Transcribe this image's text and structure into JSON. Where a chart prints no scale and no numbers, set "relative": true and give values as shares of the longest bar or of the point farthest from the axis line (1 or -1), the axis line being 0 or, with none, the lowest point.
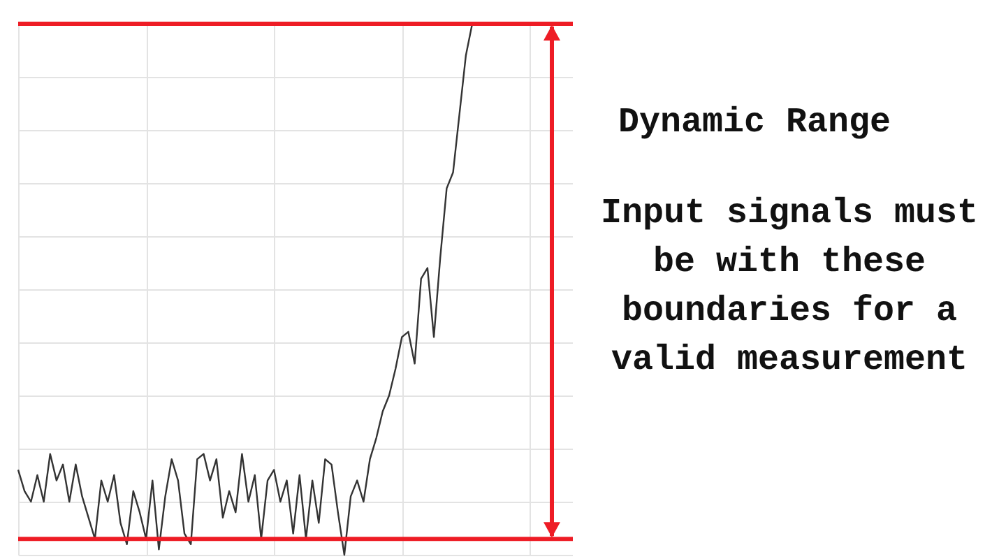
{
  "chart_data": {
    "type": "line",
    "relative": true,
    "grid": true,
    "categories": [
      null,
      null,
      null,
      null,
      null,
      null,
      null,
      null,
      null,
      null,
      null,
      null,
      null,
      null,
      null,
      null,
      null,
      null,
      null,
      null,
      null,
      null,
      null,
      null,
      null,
      null,
      null,
      null,
      null,
      null,
      null,
      null,
      null,
      null,
      null,
      null,
      null,
      null,
      null,
      null,
      null,
      null,
      null,
      null,
      null,
      null,
      null,
      null,
      null,
      null,
      null,
      null,
      null,
      null,
      null,
      null,
      null,
      null,
      null,
      null,
      null,
      null,
      null,
      null,
      null,
      null,
      null,
      null,
      null,
      null,
      null,
      null
    ],
    "series": [
      {
        "color": "#333333",
        "values": [
          0.16,
          0.12,
          0.1,
          0.15,
          0.1,
          0.19,
          0.14,
          0.17,
          0.1,
          0.17,
          0.11,
          0.07,
          0.03,
          0.14,
          0.1,
          0.15,
          0.06,
          0.02,
          0.12,
          0.08,
          0.03,
          0.14,
          0.01,
          0.11,
          0.18,
          0.14,
          0.04,
          0.02,
          0.18,
          0.19,
          0.14,
          0.18,
          0.07,
          0.12,
          0.08,
          0.19,
          0.1,
          0.15,
          0.03,
          0.14,
          0.16,
          0.1,
          0.14,
          0.04,
          0.15,
          0.03,
          0.14,
          0.06,
          0.18,
          0.17,
          0.08,
          0,
          0.11,
          0.14,
          0.1,
          0.18,
          0.22,
          0.27,
          0.3,
          0.35,
          0.41,
          0.42,
          0.36,
          0.52,
          0.54,
          0.41,
          0.56,
          0.69,
          0.72,
          0.83,
          0.94,
          1
        ]
      }
    ],
    "ref_lines": [
      {
        "axis": "y",
        "value": 1,
        "color": "#ee1c25"
      },
      {
        "axis": "y",
        "value": 0.03,
        "color": "#ee1c25"
      }
    ],
    "annotations": [
      "Dynamic Range",
      "Input signals must be with these boundaries for a valid measurement"
    ]
  }
}
